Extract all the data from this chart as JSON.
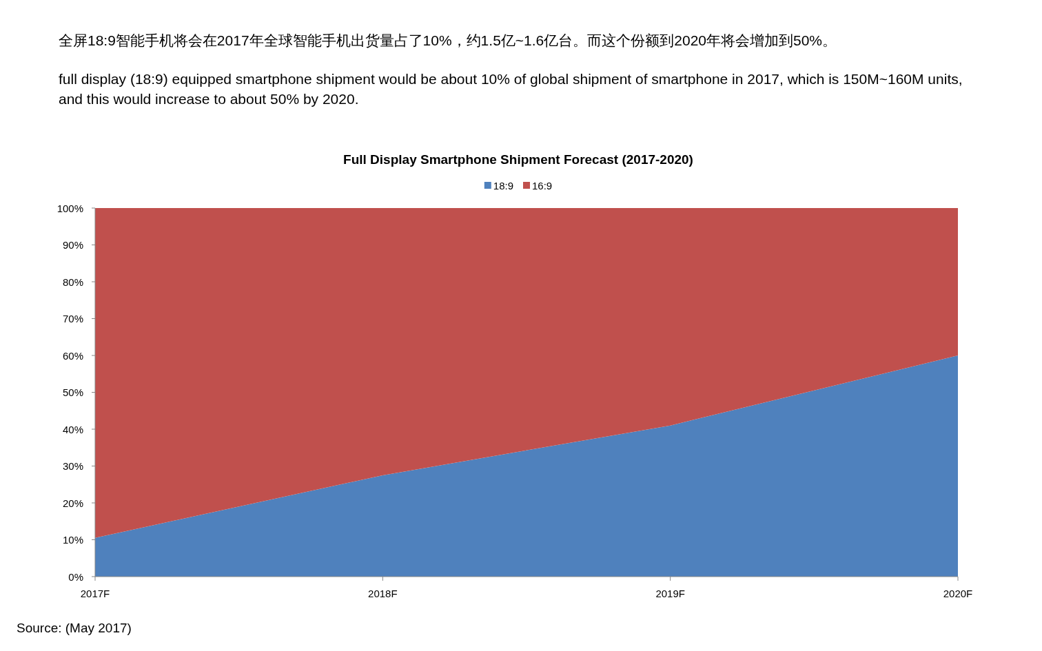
{
  "chart_data": {
    "type": "area",
    "title": "Full Display Smartphone Shipment Forecast (2017-2020)",
    "categories": [
      "2017F",
      "2018F",
      "2019F",
      "2020F"
    ],
    "stacked": true,
    "series": [
      {
        "name": "18:9",
        "color": "#4f81bd",
        "values": [
          10.5,
          27.5,
          41,
          60
        ]
      },
      {
        "name": "16:9",
        "color": "#c0504d",
        "values": [
          89.5,
          72.5,
          59,
          40
        ]
      }
    ],
    "ylim": [
      0,
      100
    ],
    "yticks": [
      {
        "value": 0,
        "label": "0%"
      },
      {
        "value": 10,
        "label": "10%"
      },
      {
        "value": 20,
        "label": "20%"
      },
      {
        "value": 30,
        "label": "30%"
      },
      {
        "value": 40,
        "label": "40%"
      },
      {
        "value": 50,
        "label": "50%"
      },
      {
        "value": 60,
        "label": "60%"
      },
      {
        "value": 70,
        "label": "70%"
      },
      {
        "value": 80,
        "label": "80%"
      },
      {
        "value": 90,
        "label": "90%"
      },
      {
        "value": 100,
        "label": "100%"
      }
    ],
    "legend": "top",
    "annotations": [
      "全屏18:9智能手机将会在2017年全球智能手机出货量占了10%，约1.5亿~1.6亿台。而这个份额到2020年将会增加到50%。",
      "full display (18:9) equipped smartphone shipment would be about 10% of global shipment of smartphone in 2017, which is 150M~160M units, and this would increase to about 50% by 2020.",
      "Source: (May 2017)"
    ]
  }
}
